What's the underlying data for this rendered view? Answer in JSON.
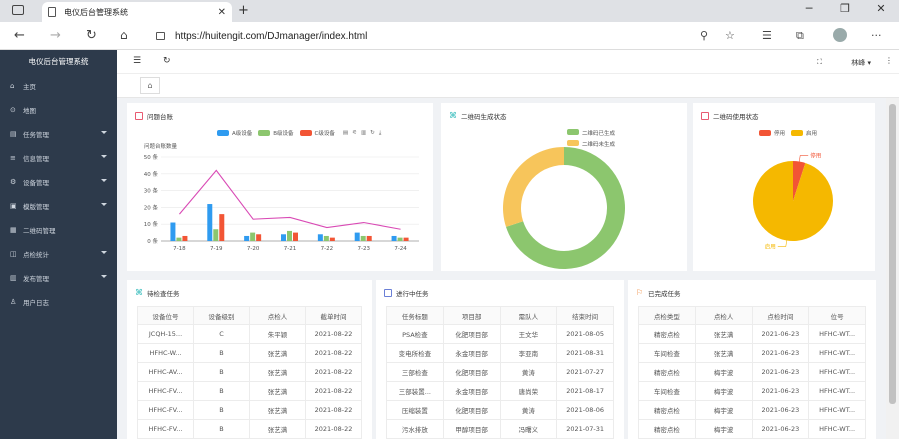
{
  "browser": {
    "tab_title": "电仪后台管理系统",
    "url": "https://huitengit.com/DJmanager/index.html"
  },
  "sidebar": {
    "title": "电仪后台管理系统",
    "items": [
      {
        "label": "主页",
        "icon": "home-icon",
        "caret": false
      },
      {
        "label": "地图",
        "icon": "location-icon",
        "caret": false
      },
      {
        "label": "任务管理",
        "icon": "task-icon",
        "caret": true
      },
      {
        "label": "信息管理",
        "icon": "info-icon",
        "caret": true
      },
      {
        "label": "设备管理",
        "icon": "device-icon",
        "caret": true
      },
      {
        "label": "模版管理",
        "icon": "template-icon",
        "caret": true
      },
      {
        "label": "二维码管理",
        "icon": "qrcode-icon",
        "caret": false
      },
      {
        "label": "点检统计",
        "icon": "stats-icon",
        "caret": true
      },
      {
        "label": "发布管理",
        "icon": "publish-icon",
        "caret": true
      },
      {
        "label": "用户日志",
        "icon": "user-log-icon",
        "caret": false
      }
    ]
  },
  "header": {
    "user": "林峰 ▾"
  },
  "cards": {
    "problem": {
      "title": "问题台账",
      "ylabel": "问题台账数量",
      "legend": [
        "A级设备",
        "B级设备",
        "C级设备"
      ]
    },
    "qr_gen": {
      "title": "二维码生成状态",
      "legend": [
        "二维码已生成",
        "二维码未生成"
      ]
    },
    "qr_use": {
      "title": "二维码使用状态",
      "legend": [
        "停用",
        "启用"
      ],
      "labels": [
        "停用",
        "启用"
      ]
    },
    "pending": {
      "title": "待检查任务",
      "columns": [
        "设备位号",
        "设备级别",
        "点检人",
        "截单时间"
      ],
      "rows": [
        [
          "JCQH-15...",
          "C",
          "朱平颖",
          "2021-08-22"
        ],
        [
          "HFHC-W...",
          "B",
          "张艺满",
          "2021-08-22"
        ],
        [
          "HFHC-AV...",
          "B",
          "张艺满",
          "2021-08-22"
        ],
        [
          "HFHC-FV...",
          "B",
          "张艺满",
          "2021-08-22"
        ],
        [
          "HFHC-FV...",
          "B",
          "张艺满",
          "2021-08-22"
        ],
        [
          "HFHC-FV...",
          "B",
          "张艺满",
          "2021-08-22"
        ]
      ]
    },
    "ongoing": {
      "title": "进行中任务",
      "columns": [
        "任务标题",
        "项目部",
        "需队人",
        "结束时间"
      ],
      "rows": [
        [
          "PSA检查",
          "化肥项目部",
          "王文华",
          "2021-08-05"
        ],
        [
          "变电所检查",
          "永金项目部",
          "李亚南",
          "2021-08-31"
        ],
        [
          "三部检查",
          "化肥项目部",
          "黄涛",
          "2021-07-27"
        ],
        [
          "三部装置...",
          "永金项目部",
          "唐尚荣",
          "2021-08-17"
        ],
        [
          "压缩装置",
          "化肥项目部",
          "黄涛",
          "2021-08-06"
        ],
        [
          "污水排放",
          "甲醇项目部",
          "冯曙义",
          "2021-07-31"
        ]
      ]
    },
    "done": {
      "title": "已完成任务",
      "columns": [
        "点检类型",
        "点检人",
        "点检时间",
        "位号"
      ],
      "rows": [
        [
          "精密点检",
          "张艺满",
          "2021-06-23",
          "HFHC-WT..."
        ],
        [
          "车间检查",
          "张艺满",
          "2021-06-23",
          "HFHC-WT..."
        ],
        [
          "精密点检",
          "梅宇波",
          "2021-06-23",
          "HFHC-WT..."
        ],
        [
          "车间检查",
          "梅宇波",
          "2021-06-23",
          "HFHC-WT..."
        ],
        [
          "精密点检",
          "梅宇波",
          "2021-06-23",
          "HFHC-WT..."
        ],
        [
          "精密点检",
          "梅宇波",
          "2021-06-23",
          "HFHC-WT..."
        ]
      ]
    }
  },
  "chart_data": [
    {
      "type": "bar",
      "title": "问题台账",
      "ylabel": "问题台账数量",
      "categories": [
        "7-18",
        "7-19",
        "7-20",
        "7-21",
        "7-22",
        "7-23",
        "7-24"
      ],
      "yticks": [
        "0 条",
        "10 条",
        "20 条",
        "30 条",
        "40 条",
        "50 条"
      ],
      "ylim": [
        0,
        50
      ],
      "series": [
        {
          "name": "A级设备",
          "color": "#2f9bf0",
          "values": [
            11,
            22,
            3,
            4,
            4,
            5,
            3
          ]
        },
        {
          "name": "B级设备",
          "color": "#8cc66e",
          "values": [
            2,
            7,
            5,
            6,
            3,
            3,
            2
          ]
        },
        {
          "name": "C级设备",
          "color": "#f25535",
          "values": [
            3,
            16,
            4,
            5,
            2,
            3,
            2
          ]
        }
      ],
      "line": {
        "color": "#d94ab5",
        "values": [
          16,
          42,
          13,
          14,
          8,
          11,
          7
        ]
      }
    },
    {
      "type": "pie",
      "title": "二维码生成状态",
      "donut": true,
      "slices": [
        {
          "name": "二维码已生成",
          "value": 70,
          "color": "#8cc66e"
        },
        {
          "name": "二维码未生成",
          "value": 30,
          "color": "#f7c55b"
        }
      ]
    },
    {
      "type": "pie",
      "title": "二维码使用状态",
      "donut": false,
      "slices": [
        {
          "name": "停用",
          "value": 5,
          "color": "#f25535"
        },
        {
          "name": "启用",
          "value": 95,
          "color": "#f5b800"
        }
      ]
    }
  ]
}
